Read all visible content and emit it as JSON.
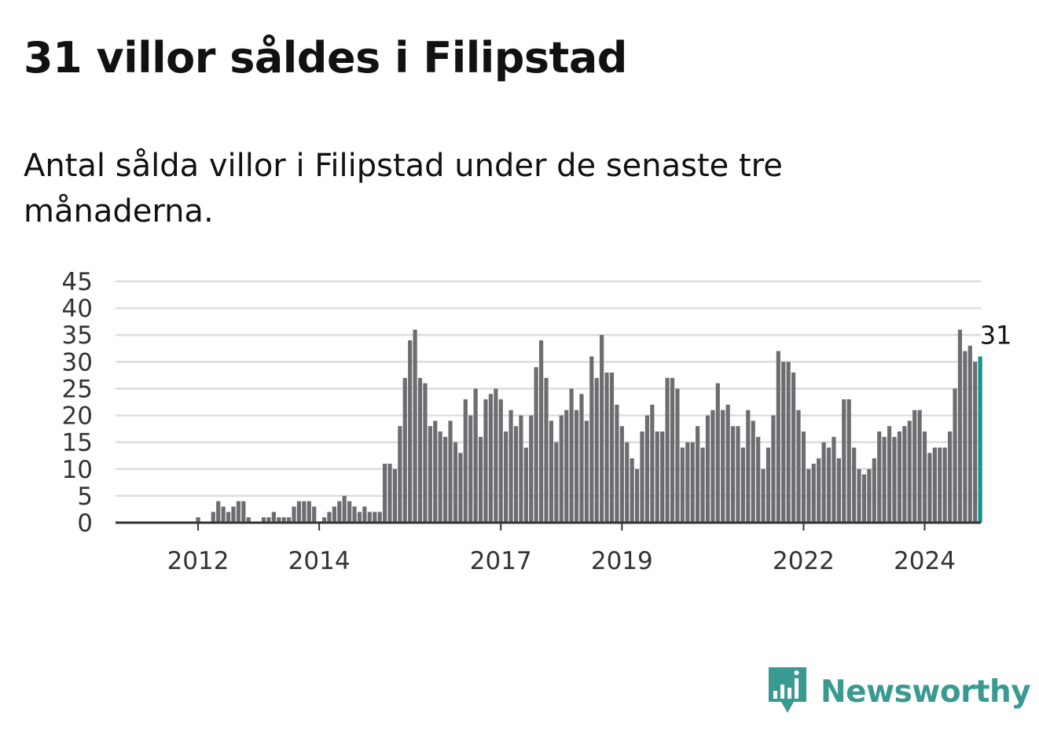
{
  "title": "31 villor såldes i Filipstad",
  "subtitle": "Antal sålda villor i Filipstad under de senaste tre månaderna.",
  "brand": {
    "name": "Newsworthy",
    "color": "#3a9a92",
    "icon": "newsworthy-logo-icon"
  },
  "colors": {
    "bar": "#6d6c71",
    "highlight": "#14958b",
    "grid": "#dddddd",
    "axis": "#333333"
  },
  "chart_data": {
    "type": "bar",
    "start": "2011-01",
    "frequency": "monthly",
    "title": "",
    "xlabel": "",
    "ylabel": "",
    "ylim": [
      0,
      45
    ],
    "yticks": [
      0,
      5,
      10,
      15,
      20,
      25,
      30,
      35,
      40,
      45
    ],
    "xticks": [
      {
        "label": "2012",
        "index": 12
      },
      {
        "label": "2014",
        "index": 36
      },
      {
        "label": "2017",
        "index": 72
      },
      {
        "label": "2019",
        "index": 96
      },
      {
        "label": "2022",
        "index": 132
      },
      {
        "label": "2024",
        "index": 156
      }
    ],
    "grid": true,
    "values": [
      0,
      0,
      0,
      0,
      0,
      0,
      0,
      0,
      0,
      0,
      0,
      0,
      1,
      0,
      0,
      2,
      4,
      3,
      2,
      3,
      4,
      4,
      1,
      0,
      0,
      1,
      1,
      2,
      1,
      1,
      1,
      3,
      4,
      4,
      4,
      3,
      0,
      1,
      2,
      3,
      4,
      5,
      4,
      3,
      2,
      3,
      2,
      2,
      2,
      11,
      11,
      10,
      18,
      27,
      34,
      36,
      27,
      26,
      18,
      19,
      17,
      16,
      19,
      15,
      13,
      23,
      20,
      25,
      16,
      23,
      24,
      25,
      23,
      17,
      21,
      18,
      20,
      14,
      20,
      29,
      34,
      27,
      19,
      15,
      20,
      21,
      25,
      21,
      24,
      19,
      31,
      27,
      35,
      28,
      28,
      22,
      18,
      15,
      12,
      10,
      17,
      20,
      22,
      17,
      17,
      27,
      27,
      25,
      14,
      15,
      15,
      18,
      14,
      20,
      21,
      26,
      21,
      22,
      18,
      18,
      14,
      21,
      19,
      16,
      10,
      14,
      20,
      32,
      30,
      30,
      28,
      21,
      17,
      10,
      11,
      12,
      15,
      14,
      16,
      12,
      23,
      23,
      14,
      10,
      9,
      10,
      12,
      17,
      16,
      18,
      16,
      17,
      18,
      19,
      21,
      21,
      17,
      13,
      14,
      14,
      14,
      17,
      25,
      36,
      32,
      33,
      30,
      31
    ],
    "highlight_last": true,
    "data_label": "31"
  }
}
